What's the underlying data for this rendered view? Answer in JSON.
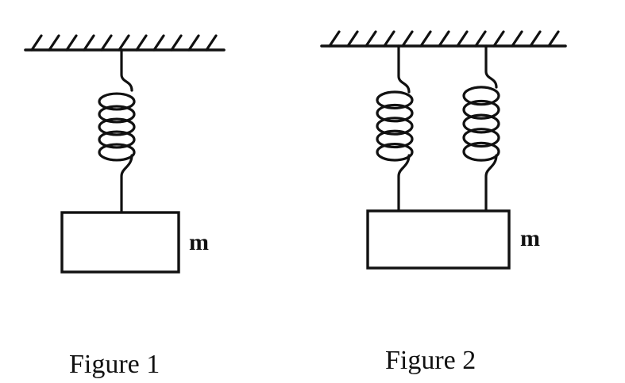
{
  "figures": [
    {
      "caption": "Figure 1",
      "mass_label": "m",
      "spring_count": 1
    },
    {
      "caption": "Figure 2",
      "mass_label": "m",
      "spring_count": 2
    }
  ],
  "colors": {
    "ink": "#111111",
    "background": "#ffffff"
  }
}
